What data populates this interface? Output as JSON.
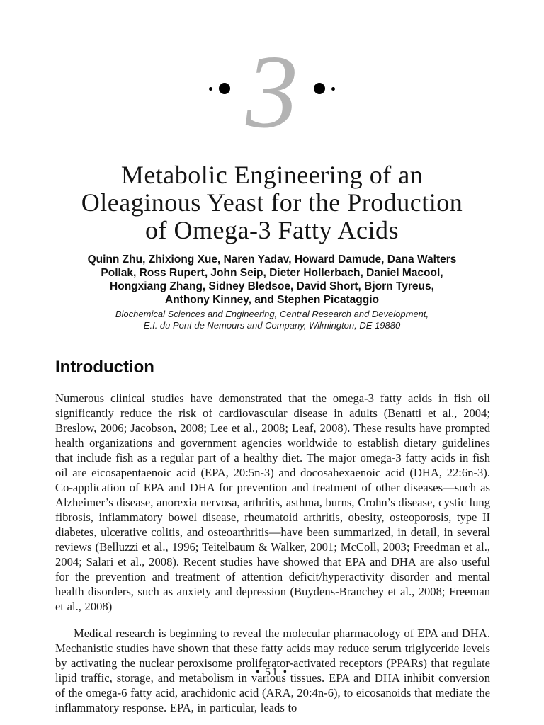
{
  "page": {
    "chapter_number": "3",
    "page_number": "• 51 •"
  },
  "title": {
    "lines": [
      "Metabolic Engineering of an",
      "Oleaginous Yeast for the Production",
      "of Omega-3 Fatty Acids"
    ]
  },
  "authors": {
    "lines": [
      "Quinn Zhu, Zhixiong Xue, Naren Yadav, Howard Damude, Dana Walters",
      "Pollak, Ross Rupert, John Seip, Dieter Hollerbach, Daniel Macool,",
      "Hongxiang Zhang, Sidney Bledsoe, David Short, Bjorn Tyreus,",
      "Anthony Kinney, and Stephen Picataggio"
    ]
  },
  "affiliation": {
    "lines": [
      "Biochemical Sciences and Engineering, Central Research and Development,",
      "E.I. du Pont de Nemours and Company, Wilmington, DE 19880"
    ]
  },
  "introduction": {
    "heading": "Introduction",
    "paragraphs": [
      "Numerous clinical studies have demonstrated that the omega-3 fatty acids in fish oil significantly reduce the risk of cardiovascular disease in adults (Benatti et al., 2004; Breslow, 2006; Jacobson, 2008; Lee et al., 2008; Leaf, 2008). These results have prompted health organizations and government agencies worldwide to establish dietary guidelines that include fish as a regular part of a healthy diet. The major omega-3 fatty acids in fish oil are eicosapentaenoic acid (EPA, 20:5n-3) and docosahexaenoic acid (DHA, 22:6n-3). Co-application of EPA and DHA for prevention and treatment of other diseases—such as Alzheimer’s disease, anorexia nervosa, arthritis, asthma, burns, Crohn’s disease, cystic lung fibrosis, inflammatory bowel disease, rheumatoid arthritis, obesity, osteoporosis, type II diabetes, ulcerative colitis, and osteoarthritis—have been summarized, in detail, in several reviews (Belluzzi et al., 1996; Teitelbaum & Walker, 2001; McColl, 2003; Freedman et al., 2004; Salari et al., 2008). Recent studies have showed that EPA and DHA are also useful for the prevention and treatment of attention deficit/hyperactivity disorder and mental health disorders, such as anxiety and depression (Buydens-Branchey et al., 2008; Freeman et al., 2008)",
      "Medical research is beginning to reveal the molecular pharmacology of EPA and DHA. Mechanistic studies have shown that these fatty acids may reduce serum triglyceride levels by activating the nuclear peroxisome proliferator-activated receptors (PPARs) that regulate lipid traffic, storage, and metabolism in various tissues. EPA and DHA inhibit conversion of the omega-6 fatty acid, arachidonic acid (ARA, 20:4n-6), to eicosanoids that mediate the inflammatory response. EPA, in particular, leads to"
    ]
  },
  "colors": {
    "chapter_numeral": "#b3b3b3",
    "text": "#1b1b1b",
    "background": "#ffffff"
  }
}
